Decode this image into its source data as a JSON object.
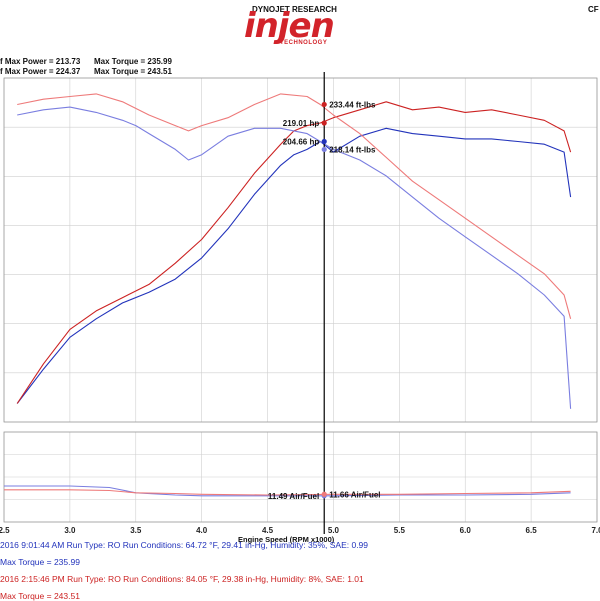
{
  "header": {
    "brand_top": "DYNOJET RESEARCH",
    "logo_text": "injen",
    "logo_sub": "TECHNOLOGY",
    "corner": "CF"
  },
  "summary": {
    "row1": {
      "power_label": "f Max Power = 213.73",
      "torque_label": "Max Torque = 235.99"
    },
    "row2": {
      "power_label": "f Max Power = 224.37",
      "torque_label": "Max Torque = 243.51"
    }
  },
  "footer": {
    "line1": "2016 9:01:44 AM  Run Type: RO  Run Conditions: 64.72 °F, 29.41 in-Hg,  Humidity:  35%, SAE: 0.99",
    "line2": "Max Torque = 235.99",
    "line3": "2016 2:15:46 PM  Run Type: RO  Run Conditions: 84.05 °F, 29.38 in-Hg,  Humidity:  8%, SAE: 1.01",
    "line4": "Max Torque = 243.51"
  },
  "colors": {
    "run1": "#2233bb",
    "run1_light": "#7a7ee0",
    "run2": "#cc2222",
    "run2_light": "#ee7a7a",
    "grid": "#cfcfcf",
    "cursor": "#000000"
  },
  "chart_data": {
    "type": "line",
    "xlabel": "Engine Speed (RPM x1000)",
    "xlim": [
      2.5,
      7.0
    ],
    "x_ticks": [
      "2.5",
      "3.0",
      "3.5",
      "4.0",
      "4.5",
      "5.0",
      "5.5",
      "6.0",
      "6.5",
      "7.0"
    ],
    "ylim": [
      120,
      250
    ],
    "cursor_x": 4.93,
    "series": [
      {
        "key": "run1_power",
        "color": "run1",
        "x": [
          2.6,
          2.8,
          3.0,
          3.2,
          3.4,
          3.6,
          3.8,
          4.0,
          4.2,
          4.4,
          4.6,
          4.7,
          4.8,
          4.9,
          5.0,
          5.2,
          5.4,
          5.6,
          5.8,
          6.0,
          6.2,
          6.4,
          6.6,
          6.75,
          6.8
        ],
        "y": [
          127,
          140,
          152,
          159,
          165,
          169,
          174,
          182,
          193,
          206,
          217,
          221,
          223,
          226,
          222,
          228,
          231,
          229,
          228,
          227,
          227,
          226,
          225,
          222,
          205
        ]
      },
      {
        "key": "run2_power",
        "color": "run2",
        "x": [
          2.6,
          2.8,
          3.0,
          3.2,
          3.4,
          3.6,
          3.8,
          4.0,
          4.2,
          4.4,
          4.6,
          4.7,
          4.8,
          4.9,
          5.0,
          5.2,
          5.4,
          5.6,
          5.8,
          6.0,
          6.2,
          6.4,
          6.6,
          6.75,
          6.8
        ],
        "y": [
          127,
          142,
          155,
          162,
          167,
          172,
          180,
          189,
          201,
          214,
          225,
          230,
          232,
          233,
          235,
          238,
          241,
          238,
          239,
          237,
          238,
          236,
          234,
          230,
          222
        ]
      },
      {
        "key": "run1_torque",
        "color": "run1_light",
        "x": [
          2.6,
          2.8,
          3.0,
          3.2,
          3.4,
          3.5,
          3.6,
          3.8,
          3.9,
          4.0,
          4.2,
          4.4,
          4.6,
          4.8,
          4.9,
          5.0,
          5.2,
          5.4,
          5.6,
          5.8,
          6.0,
          6.2,
          6.4,
          6.6,
          6.75,
          6.8
        ],
        "y": [
          236,
          238,
          239,
          237,
          234,
          232,
          229,
          223,
          219,
          221,
          228,
          231,
          231,
          229,
          226,
          223,
          219,
          213,
          205,
          197,
          190,
          183,
          176,
          168,
          160,
          125
        ]
      },
      {
        "key": "run2_torque",
        "color": "run2_light",
        "x": [
          2.6,
          2.8,
          3.0,
          3.2,
          3.4,
          3.6,
          3.8,
          3.9,
          4.0,
          4.2,
          4.4,
          4.6,
          4.8,
          4.9,
          5.0,
          5.2,
          5.4,
          5.6,
          5.8,
          6.0,
          6.2,
          6.4,
          6.6,
          6.75,
          6.8
        ],
        "y": [
          240,
          242,
          243,
          244,
          241,
          236,
          232,
          230,
          232,
          235,
          240,
          244,
          243,
          240,
          236,
          229,
          220,
          211,
          204,
          197,
          190,
          183,
          176,
          168,
          159
        ]
      }
    ],
    "afr": {
      "ylim": [
        8,
        20
      ],
      "series": [
        {
          "key": "run1_afr",
          "color": "run1_light",
          "x": [
            2.5,
            3.0,
            3.3,
            3.5,
            3.8,
            4.0,
            4.5,
            5.0,
            5.5,
            6.0,
            6.5,
            6.8
          ],
          "y": [
            12.8,
            12.8,
            12.6,
            11.9,
            11.6,
            11.5,
            11.5,
            11.5,
            11.6,
            11.6,
            11.7,
            11.9
          ]
        },
        {
          "key": "run2_afr",
          "color": "run2_light",
          "x": [
            2.5,
            3.0,
            3.3,
            3.5,
            3.8,
            4.0,
            4.5,
            5.0,
            5.5,
            6.0,
            6.5,
            6.8
          ],
          "y": [
            12.3,
            12.3,
            12.2,
            11.9,
            11.8,
            11.7,
            11.6,
            11.7,
            11.7,
            11.8,
            11.9,
            12.1
          ]
        }
      ]
    },
    "annotations": [
      {
        "text": "219.01 hp",
        "x": 4.93,
        "y": 233.0,
        "color": "run2",
        "side": "left"
      },
      {
        "text": "233.44 ft-lbs",
        "x": 4.93,
        "y": 240.0,
        "color": "run2",
        "side": "right"
      },
      {
        "text": "204.66 hp",
        "x": 4.93,
        "y": 226.0,
        "color": "run1",
        "side": "left"
      },
      {
        "text": "218.14 ft-lbs",
        "x": 4.93,
        "y": 223.0,
        "color": "run1_light",
        "side": "right"
      }
    ],
    "afr_annotations": [
      {
        "text": "11.49 Air/Fuel",
        "x": 4.93,
        "y": 11.5,
        "color": "run1_light",
        "side": "left"
      },
      {
        "text": "11.66 Air/Fuel",
        "x": 4.93,
        "y": 11.7,
        "color": "run2_light",
        "side": "right"
      }
    ]
  }
}
